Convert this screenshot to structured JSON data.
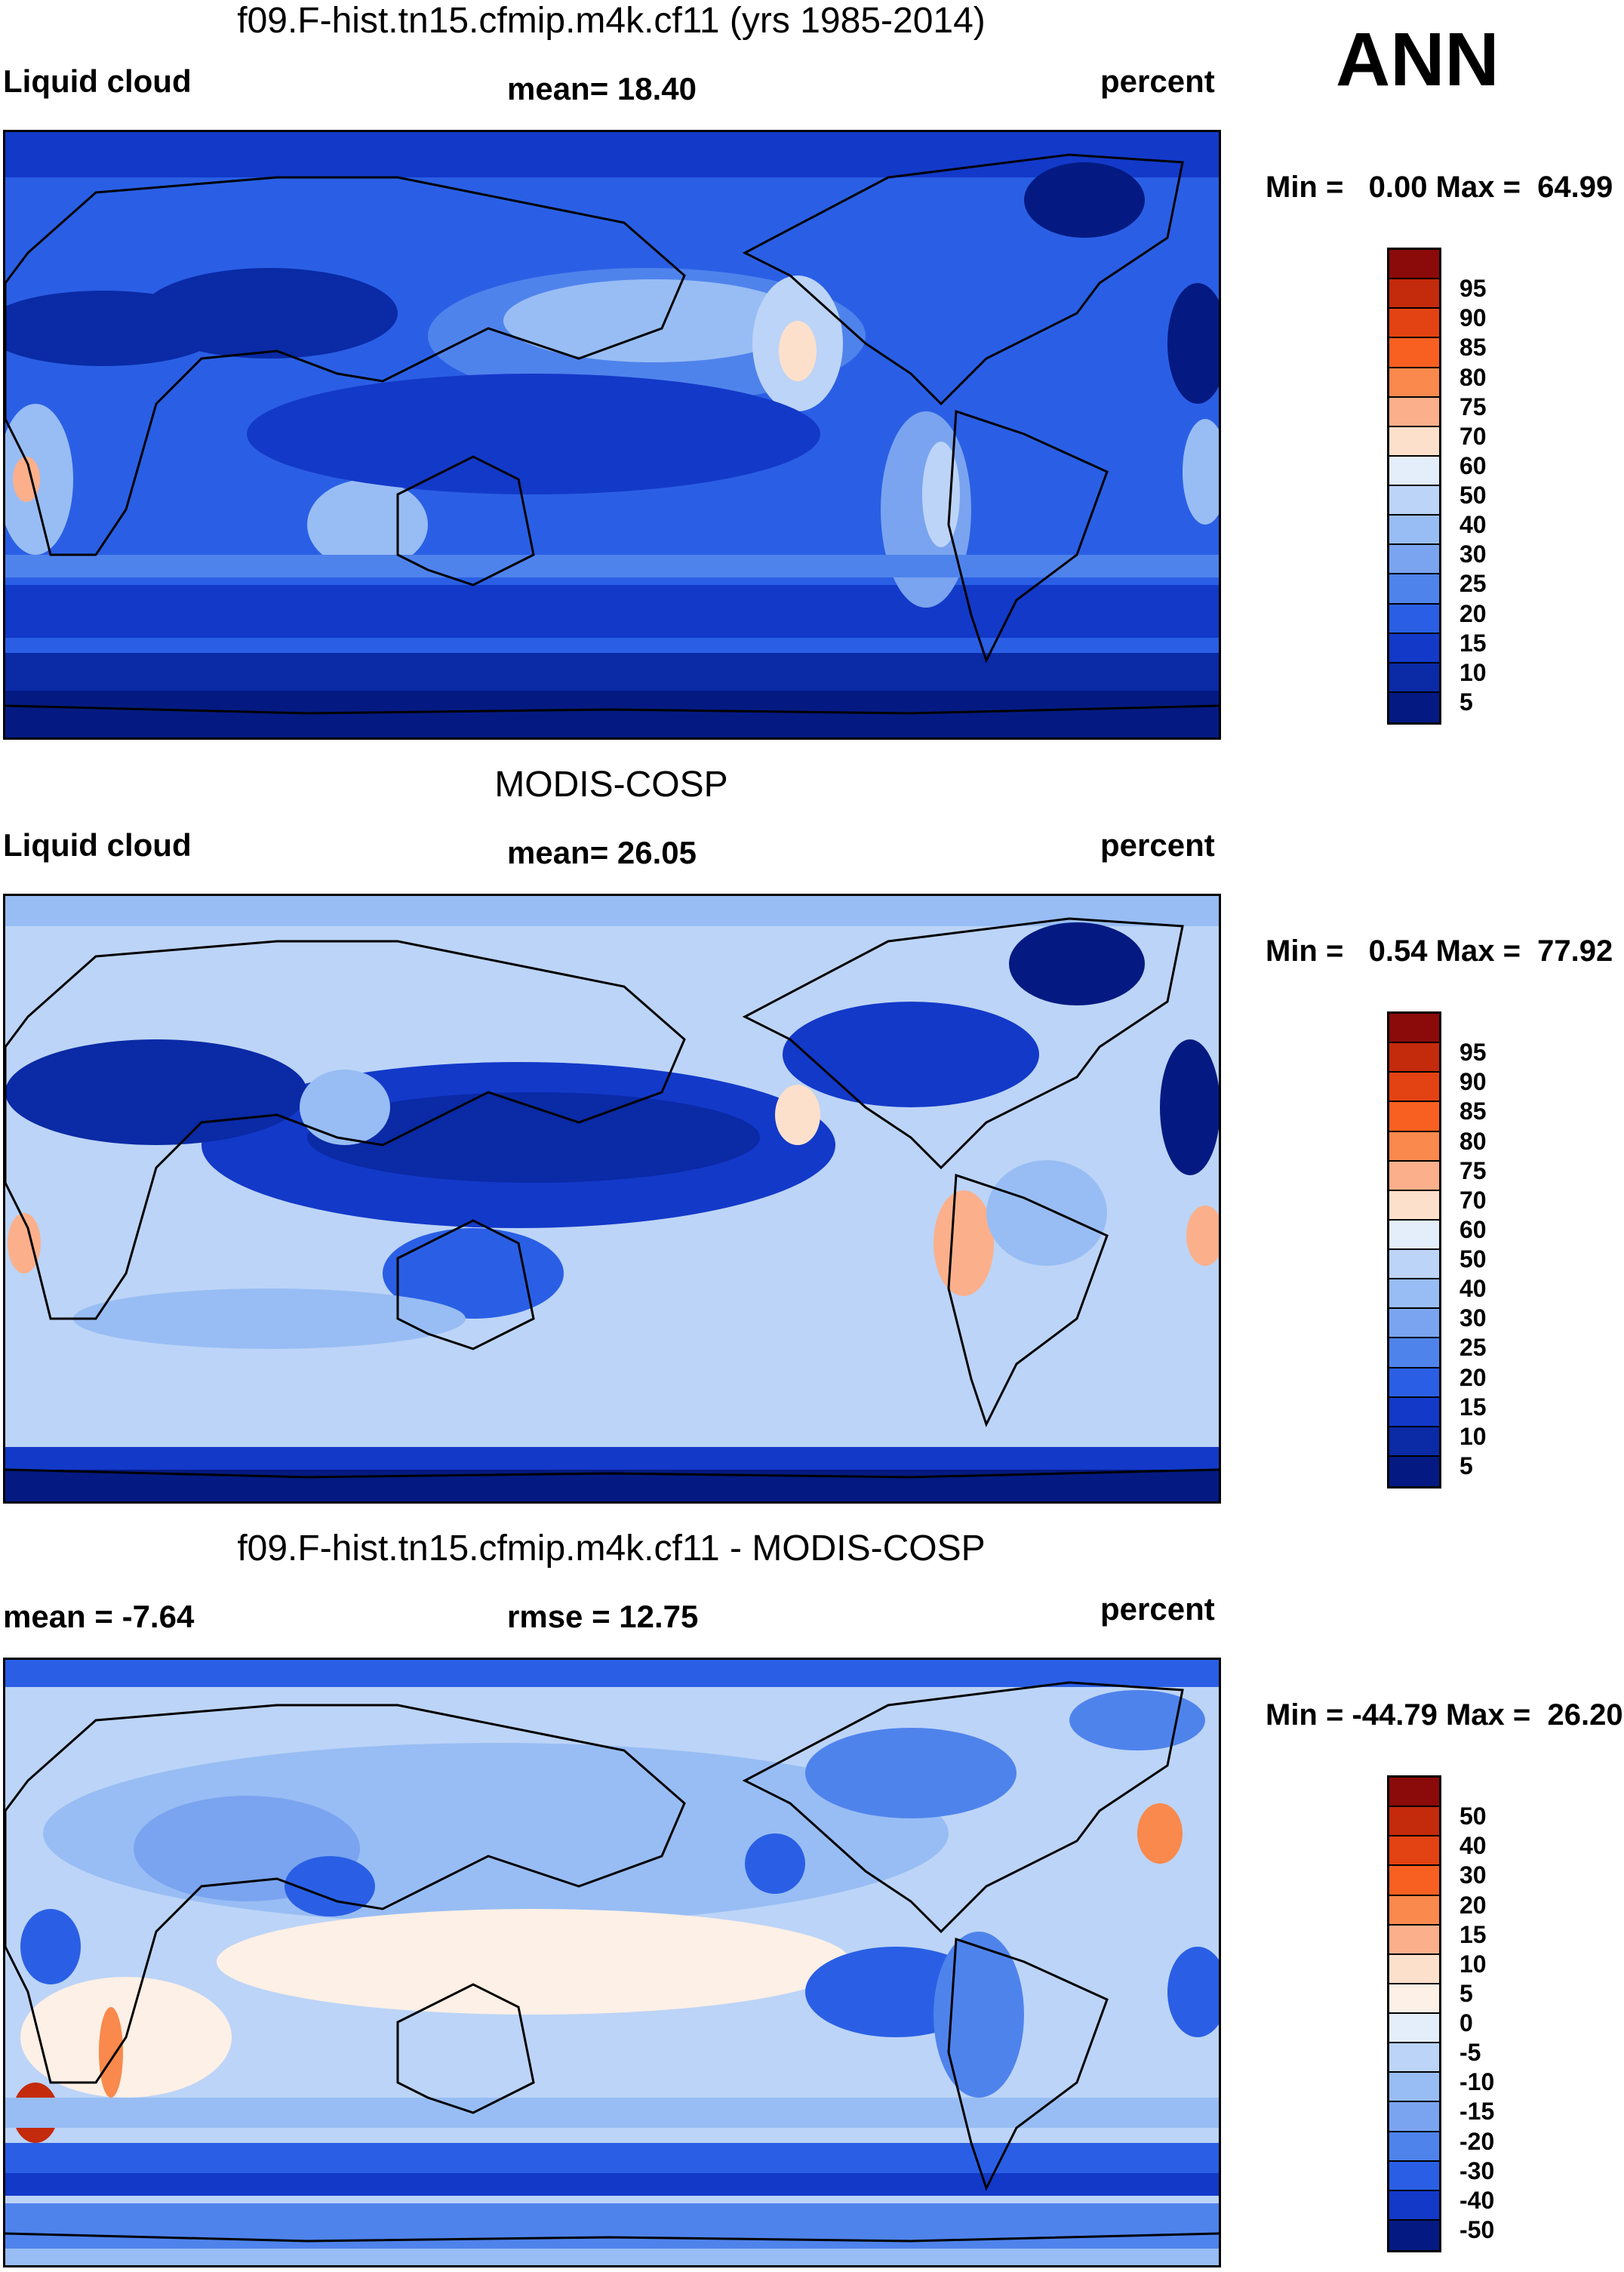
{
  "season": "ANN",
  "units_label": "percent",
  "panels": [
    {
      "title": "f09.F-hist.tn15.cfmip.m4k.cf11 (yrs 1985-2014)",
      "left_label": "Liquid cloud",
      "stat_label": "mean=  18.40",
      "right_label": "percent",
      "minmax": "Min =   0.00 Max =  64.99"
    },
    {
      "title": "MODIS-COSP",
      "left_label": "Liquid cloud",
      "stat_label": "mean=  26.05",
      "right_label": "percent",
      "minmax": "Min =   0.54 Max =  77.92"
    },
    {
      "title": "f09.F-hist.tn15.cfmip.m4k.cf11 - MODIS-COSP",
      "left_label": "mean =  -7.64",
      "stat_label": "rmse =  12.75",
      "right_label": "percent",
      "minmax": "Min = -44.79 Max =  26.20"
    }
  ],
  "colorbars": {
    "abs": {
      "labels": [
        "95",
        "90",
        "85",
        "80",
        "75",
        "70",
        "60",
        "50",
        "40",
        "30",
        "25",
        "20",
        "15",
        "10",
        "5"
      ],
      "colors": [
        "#8b0a0a",
        "#c42a0c",
        "#e34212",
        "#f76021",
        "#f9894c",
        "#fbb08b",
        "#fde0cb",
        "#e4eefb",
        "#bcd4f7",
        "#98bdf4",
        "#7aa4ef",
        "#4f83ec",
        "#2a5fe5",
        "#1339c9",
        "#0a2aa6",
        "#041a82"
      ]
    },
    "diff": {
      "labels": [
        "50",
        "40",
        "30",
        "20",
        "15",
        "10",
        "5",
        "0",
        "-5",
        "-10",
        "-15",
        "-20",
        "-30",
        "-40",
        "-50"
      ],
      "colors": [
        "#8b0a0a",
        "#c42a0c",
        "#e34212",
        "#f76021",
        "#f9894c",
        "#fbb08b",
        "#fde0cb",
        "#fdf0e6",
        "#e4eefb",
        "#bcd4f7",
        "#98bdf4",
        "#7aa4ef",
        "#4f83ec",
        "#2a5fe5",
        "#1339c9",
        "#041a82"
      ]
    }
  }
}
